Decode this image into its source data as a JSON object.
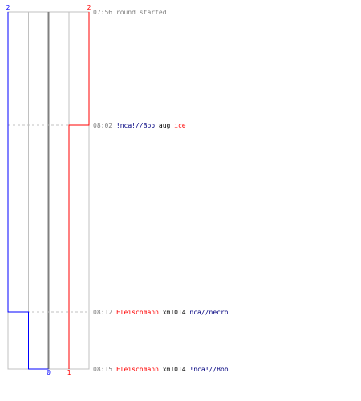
{
  "chart_data": {
    "type": "line",
    "x_range": [
      "07:56",
      "08:15"
    ],
    "y_range": [
      -2,
      2
    ],
    "series": [
      {
        "color": "#0000ff",
        "points": [
          [
            "07:56",
            -2
          ],
          [
            "08:12",
            -2
          ],
          [
            "08:12",
            -1
          ],
          [
            "08:15",
            -1
          ],
          [
            "08:15",
            0
          ]
        ]
      },
      {
        "color": "#ff0000",
        "points": [
          [
            "07:56",
            2
          ],
          [
            "08:02",
            2
          ],
          [
            "08:02",
            1
          ],
          [
            "08:15",
            1
          ]
        ]
      }
    ],
    "top_labels": {
      "blue": {
        "text": "2",
        "color": "#0000ff"
      },
      "red": {
        "text": "2",
        "color": "#ff0000"
      }
    },
    "bottom_labels": {
      "zero": {
        "text": "0",
        "color": "#0000ff"
      },
      "one": {
        "text": "1",
        "color": "#ff0000"
      }
    }
  },
  "events": [
    {
      "id": "e1",
      "time": "07:56",
      "parts": [
        {
          "text": "round started",
          "cls": "grey"
        }
      ]
    },
    {
      "id": "e2",
      "time": "08:02",
      "parts": [
        {
          "text": "!nca!//Bob",
          "color": "#00007f"
        },
        {
          "text": " aug ",
          "cls": "neutral"
        },
        {
          "text": "ice",
          "color": "#ff0000"
        }
      ]
    },
    {
      "id": "e3",
      "time": "08:12",
      "parts": [
        {
          "text": "Fleischmann",
          "color": "#ff0000"
        },
        {
          "text": " xm1014 ",
          "cls": "neutral"
        },
        {
          "text": "nca//necro",
          "color": "#00007f"
        }
      ]
    },
    {
      "id": "e4",
      "time": "08:15",
      "parts": [
        {
          "text": "Fleischmann",
          "color": "#ff0000"
        },
        {
          "text": " xm1014 ",
          "cls": "neutral"
        },
        {
          "text": "!nca!//Bob",
          "color": "#00007f"
        }
      ]
    }
  ],
  "colors": {
    "grid": "#c0c0c0",
    "center": "#808080",
    "dashed": "#c0c0c0",
    "blue": "#0000ff",
    "red": "#ff0000"
  }
}
